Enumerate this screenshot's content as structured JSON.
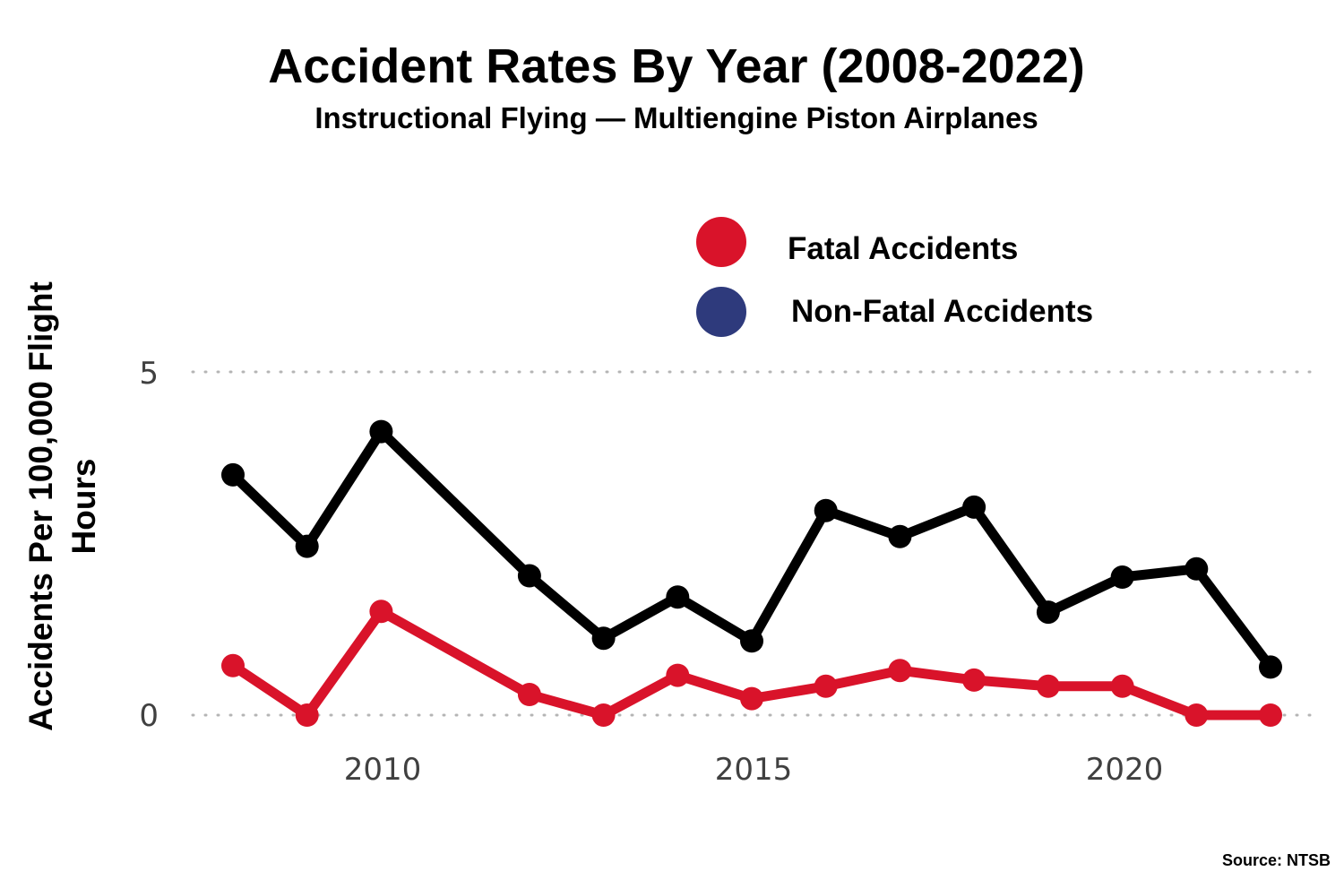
{
  "colors": {
    "fatal": "#d9132a",
    "non_fatal_legend": "#2e3a7c",
    "non_fatal_line": "#000000"
  },
  "source": "Source: NTSB",
  "chart_data": {
    "type": "line",
    "title": "Accident Rates By Year (2008-2022)",
    "subtitle": "Instructional Flying — Multiengine Piston Airplanes",
    "ylabel_lines": [
      "Accidents Per 100,000 Flight",
      "Hours"
    ],
    "xlabel": "",
    "xlim": [
      2008,
      2022
    ],
    "ylim": [
      0,
      5
    ],
    "yticks": [
      "0",
      "5"
    ],
    "xticks": [
      "2010",
      "2015",
      "2020"
    ],
    "grid": "horizontal-dotted",
    "legend_placement": "top-right",
    "x": [
      2008,
      2009,
      2010,
      2012,
      2013,
      2014,
      2015,
      2016,
      2017,
      2018,
      2019,
      2020,
      2021,
      2022
    ],
    "series": [
      {
        "name": "Fatal Accidents",
        "values": [
          0.72,
          0.0,
          1.51,
          0.3,
          0.0,
          0.58,
          0.24,
          0.42,
          0.65,
          0.51,
          0.42,
          0.42,
          0.0,
          0.0
        ]
      },
      {
        "name": "Non-Fatal Accidents",
        "values": [
          3.5,
          2.46,
          4.13,
          2.03,
          1.12,
          1.72,
          1.08,
          2.98,
          2.6,
          3.03,
          1.5,
          2.01,
          2.13,
          0.7
        ]
      }
    ]
  }
}
